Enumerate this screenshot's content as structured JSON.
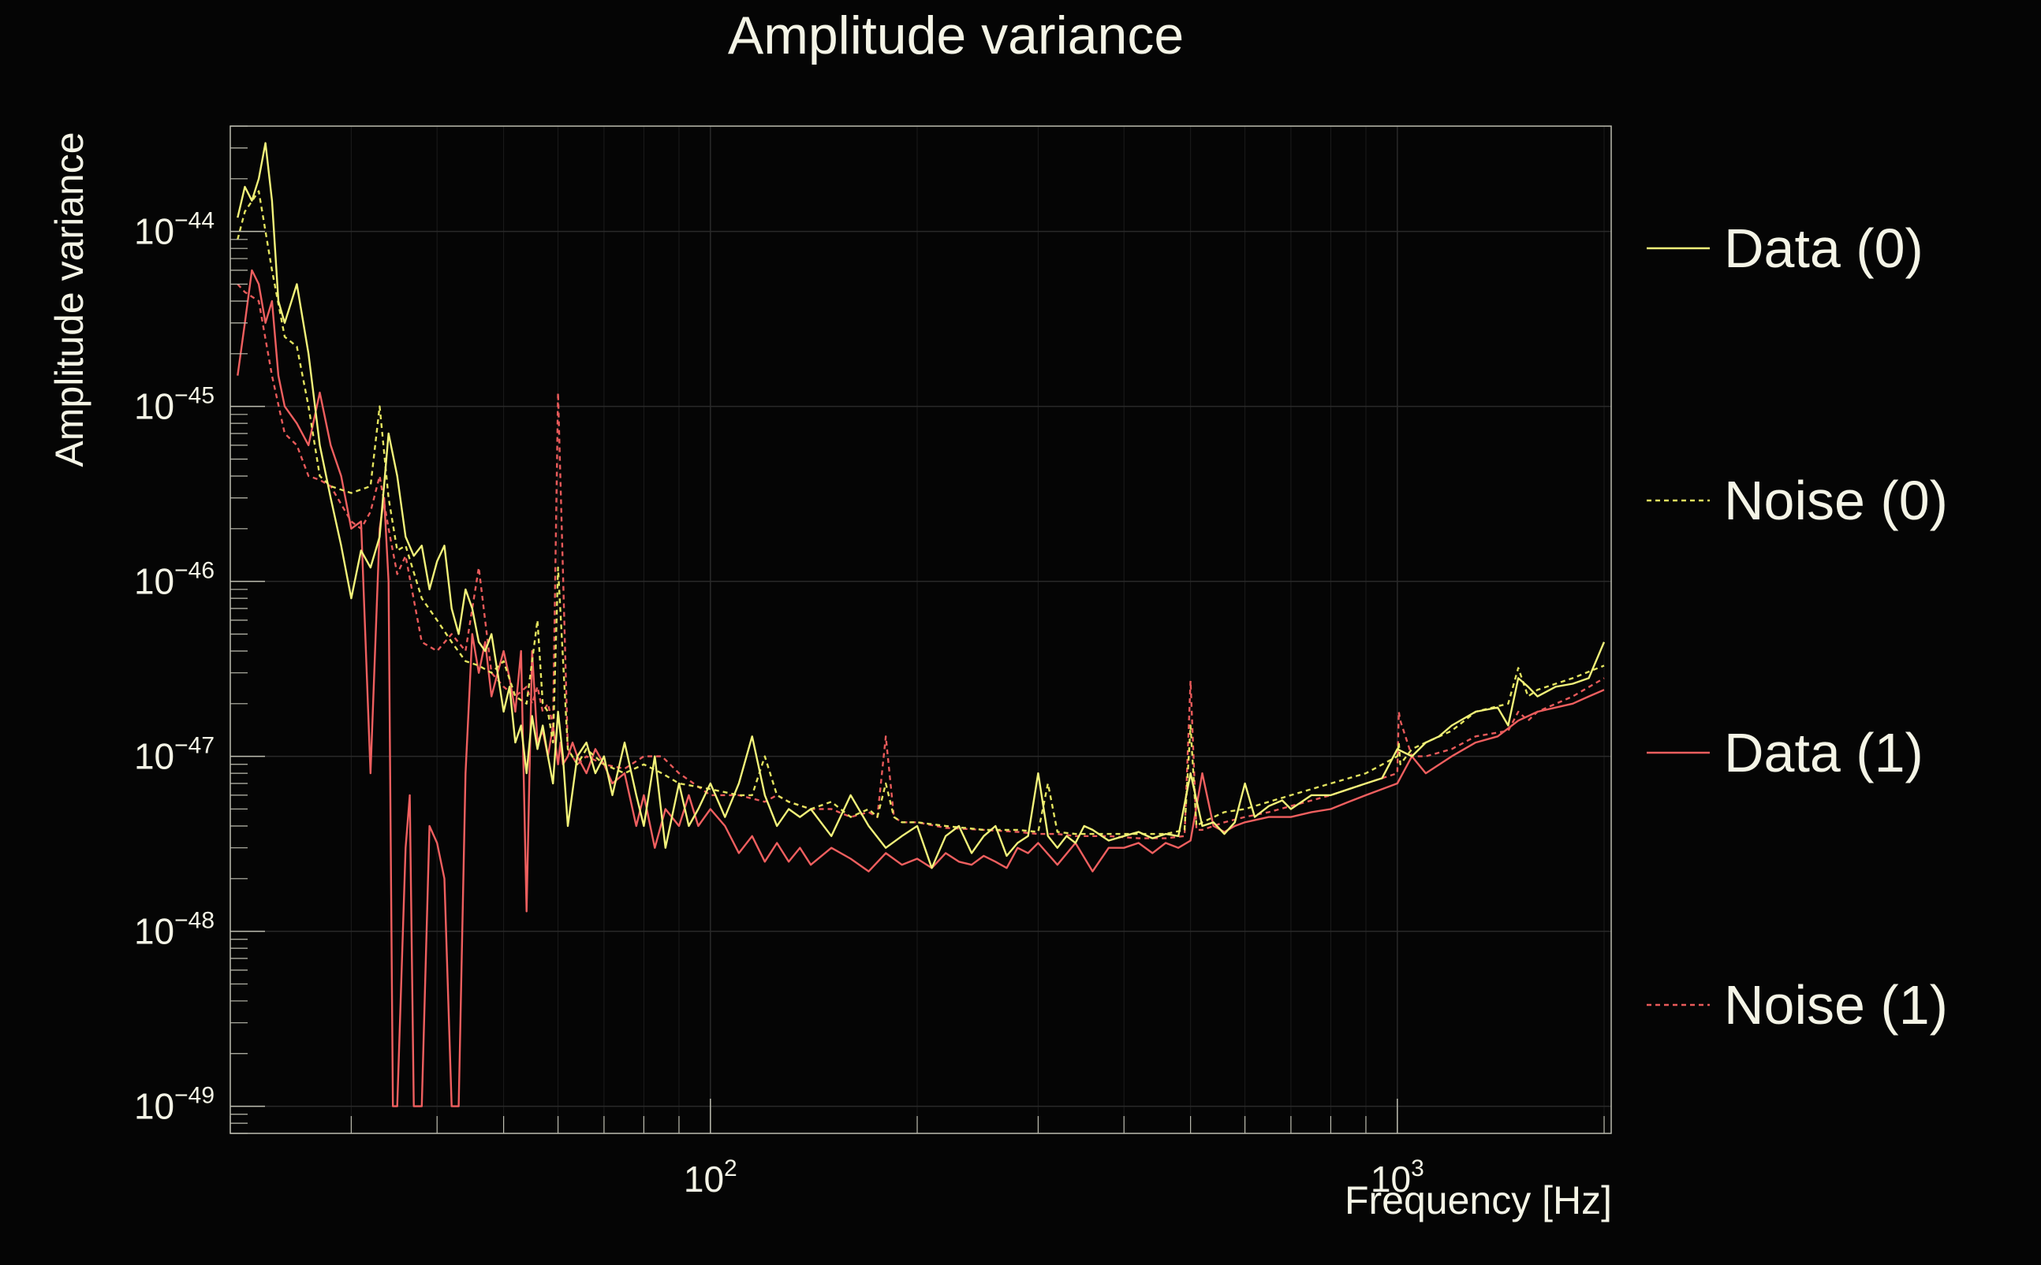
{
  "chart_data": {
    "type": "line",
    "title": "Amplitude variance",
    "xlabel": "Frequency [Hz]",
    "ylabel": "Amplitude variance",
    "x_scale": "log",
    "y_scale": "log",
    "xlim": [
      20,
      2048
    ],
    "ylim": [
      7e-50,
      4e-44
    ],
    "x_major_ticks": [
      100,
      1000
    ],
    "x_tick_labels": [
      {
        "base": "10",
        "exp": "2"
      },
      {
        "base": "10",
        "exp": "3"
      }
    ],
    "y_major_ticks": [
      1e-44,
      1e-45,
      1e-46,
      1e-47,
      1e-48,
      1e-49
    ],
    "y_tick_labels": [
      {
        "base": "10",
        "exp": "−44"
      },
      {
        "base": "10",
        "exp": "−45"
      },
      {
        "base": "10",
        "exp": "−46"
      },
      {
        "base": "10",
        "exp": "−47"
      },
      {
        "base": "10",
        "exp": "−48"
      },
      {
        "base": "10",
        "exp": "−49"
      }
    ],
    "grid": true,
    "legend_position": "right",
    "series": [
      {
        "name": "Data (0)",
        "color": "#f2f27a",
        "dash": "solid",
        "x": [
          20.5,
          21,
          21.5,
          22,
          22.5,
          23,
          23.5,
          24,
          25,
          26,
          27,
          28,
          29,
          30,
          31,
          32,
          33,
          34,
          35,
          36,
          37,
          38,
          39,
          40,
          41,
          42,
          43,
          44,
          45,
          46,
          47,
          48,
          49,
          50,
          51,
          52,
          53,
          54,
          55,
          56,
          57,
          58,
          59,
          60,
          61,
          62,
          64,
          66,
          68,
          70,
          72,
          75,
          78,
          80,
          83,
          86,
          90,
          93,
          96,
          100,
          105,
          110,
          115,
          120,
          125,
          130,
          135,
          140,
          150,
          160,
          170,
          180,
          190,
          200,
          210,
          220,
          230,
          240,
          250,
          260,
          270,
          280,
          290,
          300,
          310,
          320,
          330,
          340,
          350,
          360,
          380,
          400,
          420,
          440,
          460,
          480,
          500,
          520,
          540,
          560,
          580,
          600,
          620,
          650,
          680,
          700,
          750,
          800,
          850,
          900,
          950,
          1000,
          1050,
          1100,
          1150,
          1200,
          1300,
          1400,
          1450,
          1500,
          1550,
          1600,
          1700,
          1800,
          1900,
          2000
        ],
        "y": [
          1.2e-44,
          1.8e-44,
          1.5e-44,
          2e-44,
          3.2e-44,
          1.5e-44,
          4e-45,
          3e-45,
          5e-45,
          2e-45,
          6e-46,
          3e-46,
          1.6e-46,
          8e-47,
          1.5e-46,
          1.2e-46,
          1.8e-46,
          7e-46,
          4e-46,
          1.8e-46,
          1.4e-46,
          1.6e-46,
          9e-47,
          1.3e-46,
          1.6e-46,
          7e-47,
          5e-47,
          9e-47,
          7e-47,
          4.5e-47,
          4e-47,
          5e-47,
          3e-47,
          1.8e-47,
          2.5e-47,
          1.2e-47,
          1.5e-47,
          8e-48,
          1.7e-47,
          1.1e-47,
          1.5e-47,
          1e-47,
          7e-48,
          1.8e-47,
          1e-47,
          4e-48,
          1e-47,
          1.2e-47,
          8e-48,
          1e-47,
          6e-48,
          1.2e-47,
          6e-48,
          4e-48,
          1e-47,
          3e-48,
          7e-48,
          4e-48,
          5e-48,
          7e-48,
          4.5e-48,
          7e-48,
          1.3e-47,
          6e-48,
          4e-48,
          5e-48,
          4.5e-48,
          5e-48,
          3.5e-48,
          6e-48,
          4e-48,
          3e-48,
          3.5e-48,
          4e-48,
          2.3e-48,
          3.5e-48,
          4e-48,
          2.8e-48,
          3.5e-48,
          4e-48,
          2.7e-48,
          3.2e-48,
          3.5e-48,
          8e-48,
          3.5e-48,
          3e-48,
          3.5e-48,
          3.2e-48,
          4e-48,
          3.8e-48,
          3.3e-48,
          3.5e-48,
          3.7e-48,
          3.4e-48,
          3.6e-48,
          3.5e-48,
          8e-48,
          4e-48,
          4.2e-48,
          3.6e-48,
          4.2e-48,
          7e-48,
          4.5e-48,
          5.2e-48,
          5.6e-48,
          5e-48,
          6e-48,
          6e-48,
          6.5e-48,
          7e-48,
          7.5e-48,
          1.1e-47,
          1e-47,
          1.2e-47,
          1.3e-47,
          1.5e-47,
          1.8e-47,
          1.9e-47,
          1.5e-47,
          2.8e-47,
          2.5e-47,
          2.2e-47,
          2.5e-47,
          2.6e-47,
          2.8e-47,
          4.5e-47
        ]
      },
      {
        "name": "Noise (0)",
        "color": "#e3e35f",
        "dash": "6,5",
        "x": [
          20.5,
          21,
          22,
          23,
          24,
          25,
          26,
          27,
          28,
          30,
          32,
          33,
          34,
          35,
          36,
          38,
          40,
          42,
          44,
          46,
          48,
          50,
          52,
          54,
          56,
          57,
          58,
          59,
          60,
          62,
          64,
          66,
          70,
          75,
          80,
          85,
          90,
          100,
          110,
          115,
          120,
          125,
          130,
          140,
          150,
          160,
          170,
          175,
          180,
          185,
          190,
          200,
          220,
          250,
          280,
          300,
          310,
          320,
          340,
          380,
          420,
          460,
          490,
          500,
          510,
          520,
          560,
          600,
          650,
          700,
          800,
          900,
          1000,
          1005,
          1010,
          1050,
          1100,
          1200,
          1300,
          1450,
          1500,
          1550,
          1600,
          1800,
          2000
        ],
        "y": [
          9e-45,
          1.3e-44,
          1.7e-44,
          6e-45,
          2.5e-45,
          2.2e-45,
          1e-45,
          4e-46,
          3.5e-46,
          3.2e-46,
          3.5e-46,
          1e-45,
          3e-46,
          1.5e-46,
          1.6e-46,
          8e-47,
          6e-47,
          4.5e-47,
          3.5e-47,
          3.3e-47,
          3e-47,
          3.5e-47,
          2.2e-47,
          2e-47,
          6e-47,
          2e-47,
          1.8e-47,
          1.2e-47,
          1.2e-46,
          1.1e-47,
          9e-48,
          1.1e-47,
          9e-48,
          8e-48,
          9e-48,
          8e-48,
          7e-48,
          6.5e-48,
          6e-48,
          6e-48,
          1e-47,
          6e-48,
          5.5e-48,
          5e-48,
          5.5e-48,
          4.5e-48,
          5e-48,
          4.5e-48,
          7e-48,
          4.5e-48,
          4.2e-48,
          4.2e-48,
          4e-48,
          3.8e-48,
          3.8e-48,
          3.7e-48,
          7e-48,
          3.7e-48,
          3.6e-48,
          3.6e-48,
          3.6e-48,
          3.6e-48,
          3.8e-48,
          1.5e-47,
          4e-48,
          4.2e-48,
          4.8e-48,
          5e-48,
          5.5e-48,
          6e-48,
          7e-48,
          8e-48,
          1e-47,
          1.2e-47,
          9e-48,
          1.1e-47,
          1.2e-47,
          1.4e-47,
          1.8e-47,
          2e-47,
          3.2e-47,
          2.2e-47,
          2.4e-47,
          2.8e-47,
          3.3e-47
        ]
      },
      {
        "name": "Data (1)",
        "color": "#ef5f5f",
        "dash": "solid",
        "x": [
          20.5,
          21,
          21.5,
          22,
          22.5,
          23,
          23.5,
          24,
          25,
          26,
          27,
          28,
          29,
          30,
          31,
          32,
          33,
          33.5,
          34,
          34.5,
          35,
          36,
          36.5,
          37,
          37.5,
          38,
          39,
          40,
          41,
          42,
          43,
          44,
          45,
          46,
          47,
          48,
          49,
          50,
          51,
          52,
          53,
          54,
          55,
          56,
          57,
          58,
          59,
          60,
          60.5,
          61,
          62,
          63,
          64,
          66,
          68,
          70,
          72,
          75,
          78,
          80,
          83,
          86,
          90,
          93,
          96,
          100,
          105,
          110,
          115,
          120,
          125,
          130,
          135,
          140,
          150,
          160,
          170,
          180,
          190,
          200,
          210,
          220,
          230,
          240,
          250,
          260,
          270,
          280,
          290,
          300,
          320,
          340,
          360,
          380,
          400,
          420,
          440,
          460,
          480,
          500,
          520,
          540,
          560,
          580,
          600,
          650,
          700,
          750,
          800,
          850,
          900,
          950,
          1000,
          1050,
          1100,
          1200,
          1300,
          1400,
          1500,
          1600,
          1700,
          1800,
          1900,
          2000
        ],
        "y": [
          1.5e-45,
          3e-45,
          6e-45,
          5e-45,
          3e-45,
          4e-45,
          1.5e-45,
          1e-45,
          8e-46,
          6e-46,
          1.2e-45,
          6e-46,
          4e-46,
          2e-46,
          2.2e-46,
          8e-48,
          2e-46,
          3e-46,
          1e-46,
          1e-49,
          1e-49,
          3e-48,
          6e-48,
          1e-49,
          1e-49,
          1e-49,
          4e-48,
          3.2e-48,
          2e-48,
          1e-49,
          1e-49,
          8e-48,
          5e-47,
          3e-47,
          4.5e-47,
          2.2e-47,
          3e-47,
          4e-47,
          2.8e-47,
          1.8e-47,
          4e-47,
          1.3e-48,
          4e-47,
          1.2e-47,
          1.4e-47,
          1e-47,
          1.5e-47,
          9e-48,
          1.2e-47,
          9e-48,
          1e-47,
          1.2e-47,
          1e-47,
          8e-48,
          1.1e-47,
          9e-48,
          7e-48,
          8e-48,
          4e-48,
          6e-48,
          3e-48,
          5e-48,
          4e-48,
          6e-48,
          4e-48,
          5e-48,
          4e-48,
          2.8e-48,
          3.5e-48,
          2.5e-48,
          3.2e-48,
          2.5e-48,
          3e-48,
          2.4e-48,
          3e-48,
          2.6e-48,
          2.2e-48,
          2.8e-48,
          2.4e-48,
          2.6e-48,
          2.3e-48,
          2.8e-48,
          2.5e-48,
          2.4e-48,
          2.7e-48,
          2.5e-48,
          2.3e-48,
          3e-48,
          2.8e-48,
          3.2e-48,
          2.4e-48,
          3.2e-48,
          2.2e-48,
          3e-48,
          3e-48,
          3.2e-48,
          2.8e-48,
          3.2e-48,
          3e-48,
          3.3e-48,
          8e-48,
          4e-48,
          3.7e-48,
          4e-48,
          4.2e-48,
          4.5e-48,
          4.5e-48,
          4.8e-48,
          5e-48,
          5.5e-48,
          6e-48,
          6.5e-48,
          7e-48,
          1e-47,
          8e-48,
          1e-47,
          1.2e-47,
          1.3e-47,
          1.6e-47,
          1.8e-47,
          1.9e-47,
          2e-47,
          2.2e-47,
          2.4e-47
        ]
      },
      {
        "name": "Noise (1)",
        "color": "#e85a5a",
        "dash": "6,5",
        "x": [
          20.5,
          21,
          22,
          23,
          24,
          25,
          26,
          27,
          28,
          30,
          31,
          32,
          33,
          34,
          35,
          36,
          38,
          40,
          42,
          44,
          46,
          48,
          50,
          52,
          54,
          55,
          56,
          57,
          58,
          59,
          60,
          62,
          64,
          66,
          70,
          75,
          80,
          85,
          90,
          100,
          110,
          120,
          125,
          130,
          140,
          150,
          160,
          170,
          175,
          180,
          185,
          190,
          200,
          220,
          250,
          280,
          300,
          310,
          320,
          340,
          380,
          420,
          460,
          490,
          500,
          510,
          520,
          560,
          600,
          650,
          700,
          800,
          900,
          1000,
          1005,
          1010,
          1050,
          1100,
          1200,
          1300,
          1450,
          1500,
          1550,
          1600,
          1800,
          2000
        ],
        "y": [
          5e-45,
          4.5e-45,
          4e-45,
          1.5e-45,
          7e-46,
          6e-46,
          4e-46,
          3.8e-46,
          3.5e-46,
          2.2e-46,
          2e-46,
          2.5e-46,
          4e-46,
          2e-46,
          1.1e-46,
          1.4e-46,
          4.5e-47,
          4e-47,
          5e-47,
          4e-47,
          1.2e-46,
          3e-47,
          2.5e-47,
          2.2e-47,
          2.5e-47,
          2e-47,
          2.5e-47,
          1.8e-47,
          2e-47,
          1.5e-47,
          1.2e-45,
          1.1e-47,
          9e-48,
          1e-47,
          9e-48,
          8.5e-48,
          1e-47,
          1e-47,
          8e-48,
          6e-48,
          6e-48,
          5.5e-48,
          6e-48,
          5.5e-48,
          5e-48,
          5e-48,
          4.5e-48,
          4.8e-48,
          4.5e-48,
          1.3e-47,
          4.5e-48,
          4.2e-48,
          4.2e-48,
          3.9e-48,
          3.8e-48,
          3.7e-48,
          3.6e-48,
          3.6e-48,
          3.6e-48,
          3.5e-48,
          3.5e-48,
          3.4e-48,
          3.4e-48,
          3.5e-48,
          2.7e-47,
          3.8e-48,
          3.8e-48,
          4.2e-48,
          4.5e-48,
          4.8e-48,
          5.2e-48,
          6e-48,
          7e-48,
          8e-48,
          1.8e-47,
          1.6e-47,
          1e-47,
          1e-47,
          1.1e-47,
          1.3e-47,
          1.4e-47,
          1.8e-47,
          1.6e-47,
          1.8e-47,
          2.2e-47,
          2.8e-47
        ]
      }
    ]
  }
}
